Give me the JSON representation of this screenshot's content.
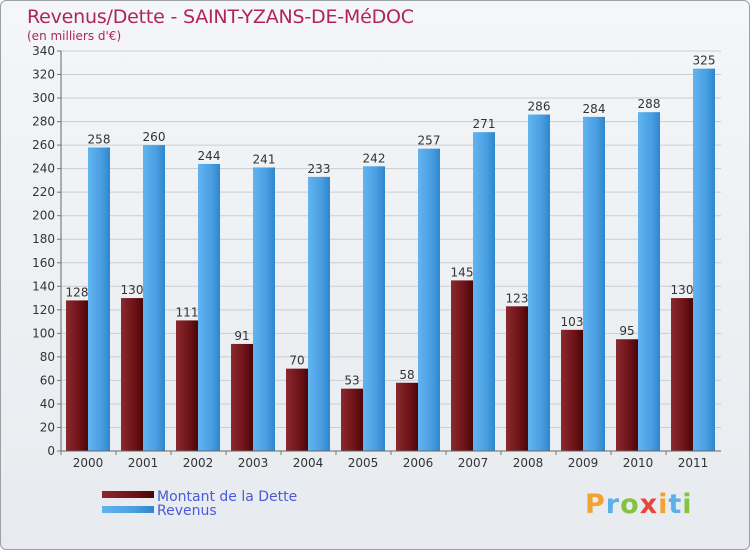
{
  "chart_data": {
    "type": "bar",
    "title": "Revenus/Dette - SAINT-YZANS-DE-MéDOC",
    "subtitle": "(en milliers d'€)",
    "categories": [
      "2000",
      "2001",
      "2002",
      "2003",
      "2004",
      "2005",
      "2006",
      "2007",
      "2008",
      "2009",
      "2010",
      "2011"
    ],
    "series": [
      {
        "name": "Montant de la Dette",
        "color": "#6b0f12",
        "values": [
          128,
          130,
          111,
          91,
          70,
          53,
          58,
          145,
          123,
          103,
          95,
          130
        ]
      },
      {
        "name": "Revenus",
        "color": "#4ea3e6",
        "values": [
          258,
          260,
          244,
          241,
          233,
          242,
          257,
          271,
          286,
          284,
          288,
          325
        ]
      }
    ],
    "ylim": [
      0,
      340
    ],
    "ytick_step": 20,
    "grid": true,
    "legend": "bottom-left"
  },
  "brand": "Proxiti"
}
